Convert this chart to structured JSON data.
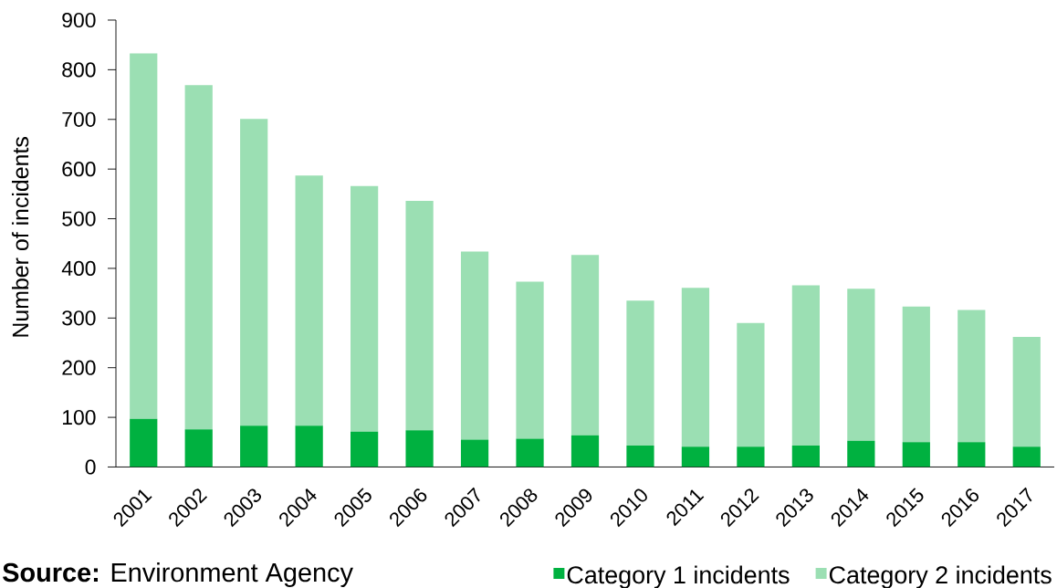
{
  "chart_data": {
    "type": "bar",
    "stacked": true,
    "ylabel": "Number of incidents",
    "categories": [
      "2001",
      "2002",
      "2003",
      "2004",
      "2005",
      "2006",
      "2007",
      "2008",
      "2009",
      "2010",
      "2011",
      "2012",
      "2013",
      "2014",
      "2015",
      "2016",
      "2017"
    ],
    "series": [
      {
        "name": "Category 1 incidents",
        "color": "#00b140",
        "values": [
          97,
          76,
          83,
          83,
          71,
          74,
          55,
          57,
          64,
          43,
          41,
          41,
          43,
          53,
          50,
          50,
          41
        ]
      },
      {
        "name": "Category 2 incidents",
        "color": "#9bdfb3",
        "values": [
          736,
          693,
          618,
          504,
          495,
          462,
          379,
          316,
          363,
          292,
          320,
          249,
          323,
          306,
          273,
          266,
          221
        ]
      }
    ],
    "ylim": [
      0,
      900
    ],
    "yticks": [
      0,
      100,
      200,
      300,
      400,
      500,
      600,
      700,
      800,
      900
    ],
    "legend": "bottom right",
    "annotations": [
      "**Source:** Environment Agency"
    ]
  }
}
